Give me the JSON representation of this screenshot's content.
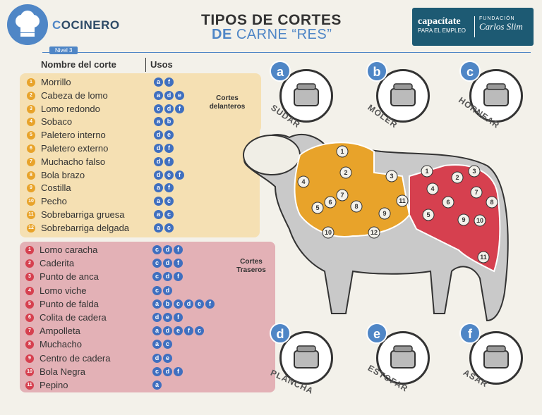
{
  "header": {
    "brand_initial": "C",
    "brand_rest": "OCINERO",
    "level": "Nivel 3",
    "title_line1": "TIPOS DE CORTES",
    "title_line2_bold": "DE",
    "title_line2_rest": " CARNE “RES”",
    "sponsor": {
      "name": "capacítate",
      "tagline": "PARA EL EMPLEO",
      "foundation": "FUNDACIÓN",
      "foundation_name": "Carlos Slim"
    }
  },
  "table": {
    "col_name": "Nombre del corte",
    "col_uses": "Usos"
  },
  "front": {
    "label": "Cortes delanteros",
    "color": "#e8a32a",
    "items": [
      {
        "n": "1",
        "name": "Morrillo",
        "uses": [
          "a",
          "f"
        ]
      },
      {
        "n": "2",
        "name": "Cabeza de lomo",
        "uses": [
          "a",
          "d",
          "e"
        ]
      },
      {
        "n": "3",
        "name": "Lomo redondo",
        "uses": [
          "c",
          "d",
          "f"
        ]
      },
      {
        "n": "4",
        "name": "Sobaco",
        "uses": [
          "a",
          "b"
        ]
      },
      {
        "n": "5",
        "name": "Paletero interno",
        "uses": [
          "d",
          "e"
        ]
      },
      {
        "n": "6",
        "name": "Paletero externo",
        "uses": [
          "d",
          "f"
        ]
      },
      {
        "n": "7",
        "name": "Muchacho falso",
        "uses": [
          "d",
          "f"
        ]
      },
      {
        "n": "8",
        "name": "Bola brazo",
        "uses": [
          "d",
          "e",
          "f"
        ]
      },
      {
        "n": "9",
        "name": "Costilla",
        "uses": [
          "a",
          "f"
        ]
      },
      {
        "n": "10",
        "name": "Pecho",
        "uses": [
          "a",
          "c"
        ]
      },
      {
        "n": "11",
        "name": "Sobrebarriga gruesa",
        "uses": [
          "a",
          "c"
        ]
      },
      {
        "n": "12",
        "name": "Sobrebarriga delgada",
        "uses": [
          "a",
          "c"
        ]
      }
    ]
  },
  "back": {
    "label": "Cortes Traseros",
    "color": "#d6404f",
    "items": [
      {
        "n": "1",
        "name": "Lomo caracha",
        "uses": [
          "c",
          "d",
          "f"
        ]
      },
      {
        "n": "2",
        "name": "Caderita",
        "uses": [
          "c",
          "d",
          "f"
        ]
      },
      {
        "n": "3",
        "name": "Punto de anca",
        "uses": [
          "c",
          "d",
          "f"
        ]
      },
      {
        "n": "4",
        "name": "Lomo viche",
        "uses": [
          "c",
          "d"
        ]
      },
      {
        "n": "5",
        "name": "Punto de falda",
        "uses": [
          "a",
          "b",
          "c",
          "d",
          "e",
          "f"
        ]
      },
      {
        "n": "6",
        "name": "Colita de cadera",
        "uses": [
          "d",
          "e",
          "f"
        ]
      },
      {
        "n": "7",
        "name": "Ampolleta",
        "uses": [
          "a",
          "d",
          "e",
          "f",
          "c"
        ]
      },
      {
        "n": "8",
        "name": "Muchacho",
        "uses": [
          "a",
          "c"
        ]
      },
      {
        "n": "9",
        "name": "Centro de cadera",
        "uses": [
          "d",
          "e"
        ]
      },
      {
        "n": "10",
        "name": "Bola Negra",
        "uses": [
          "c",
          "d",
          "f"
        ]
      },
      {
        "n": "11",
        "name": "Pepino",
        "uses": [
          "a"
        ]
      }
    ]
  },
  "methods": [
    {
      "letter": "a",
      "label": "SUDAR",
      "icon": "pressure-cooker-icon"
    },
    {
      "letter": "b",
      "label": "MOLER",
      "icon": "meat-grinder-icon"
    },
    {
      "letter": "c",
      "label": "HORNEAR",
      "icon": "oven-icon"
    },
    {
      "letter": "d",
      "label": "PLANCHA",
      "icon": "griddle-icon"
    },
    {
      "letter": "e",
      "label": "ESTOFAR",
      "icon": "stew-pot-icon"
    },
    {
      "letter": "f",
      "label": "ASAR",
      "icon": "grill-icon"
    }
  ],
  "cow": {
    "front_numbers": [
      "1",
      "2",
      "3",
      "4",
      "5",
      "6",
      "7",
      "8",
      "9",
      "10",
      "11",
      "12"
    ],
    "back_numbers": [
      "1",
      "2",
      "3",
      "4",
      "5",
      "6",
      "7",
      "8",
      "9",
      "10",
      "11"
    ]
  }
}
